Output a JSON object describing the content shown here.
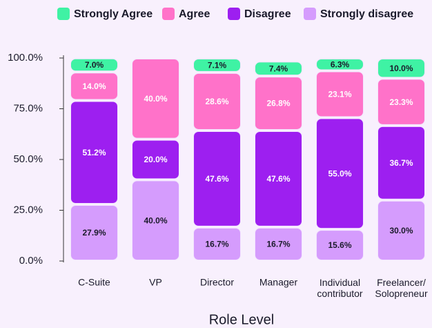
{
  "chart_data": {
    "type": "stacked-bar",
    "x_label": "Role Level",
    "categories": [
      "C-Suite",
      "VP",
      "Director",
      "Manager",
      "Individual contributor",
      "Freelancer/Solopreneur"
    ],
    "series": [
      {
        "name": "Strongly Agree",
        "color": "#3ff2a4",
        "values": [
          7.0,
          0,
          7.1,
          7.4,
          6.3,
          10.0
        ],
        "value_labels": [
          "7.0%",
          null,
          "7.1%",
          "7.4%",
          "6.3%",
          "10.0%"
        ]
      },
      {
        "name": "Agree",
        "color": "#ff72c9",
        "values": [
          14.0,
          40.0,
          28.6,
          26.8,
          23.1,
          23.3
        ],
        "value_labels": [
          "14.0%",
          "40.0%",
          "28.6%",
          "26.8%",
          "23.1%",
          "23.3%"
        ]
      },
      {
        "name": "Disagree",
        "color": "#9d1ff0",
        "values": [
          51.2,
          20.0,
          47.6,
          47.6,
          55.0,
          36.7
        ],
        "value_labels": [
          "51.2%",
          "20.0%",
          "47.6%",
          "47.6%",
          "55.0%",
          "36.7%"
        ]
      },
      {
        "name": "Strongly disagree",
        "color": "#d59cfd",
        "values": [
          27.9,
          40.0,
          16.7,
          16.7,
          15.6,
          30.0
        ],
        "value_labels": [
          "27.9%",
          "40.0%",
          "16.7%",
          "16.7%",
          "15.6%",
          "30.0%"
        ]
      }
    ],
    "ylim": [
      0,
      100
    ],
    "yticks": [
      {
        "value": 0,
        "label": "0.0%"
      },
      {
        "value": 25,
        "label": "25.0%"
      },
      {
        "value": 50,
        "label": "50.0%"
      },
      {
        "value": 75,
        "label": "75.0%"
      },
      {
        "value": 100,
        "label": "100.0%"
      }
    ],
    "grid": false
  }
}
